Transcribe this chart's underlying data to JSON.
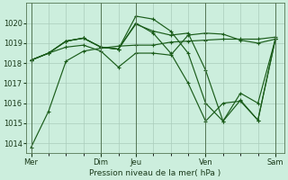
{
  "bg_color": "#cceedd",
  "grid_color": "#aaccbb",
  "line_color": "#1a5c1a",
  "ylabel": "Pression niveau de la mer( hPa )",
  "ylim": [
    1013.5,
    1021.0
  ],
  "yticks": [
    1014,
    1015,
    1016,
    1017,
    1018,
    1019,
    1020
  ],
  "xtick_labels": [
    "Mer",
    "Dim",
    "Jeu",
    "Ven",
    "Sam"
  ],
  "xtick_positions": [
    0,
    4,
    6,
    10,
    14
  ],
  "vlines": [
    0,
    4,
    6,
    10,
    14
  ],
  "x_vals": [
    0,
    1,
    2,
    3,
    4,
    5,
    6,
    7,
    8,
    9,
    10,
    11,
    12,
    13,
    14
  ],
  "series": [
    [
      1013.8,
      1015.6,
      1018.1,
      1018.6,
      1018.75,
      1018.85,
      1018.9,
      1018.9,
      1019.05,
      1019.1,
      1019.15,
      1019.2,
      1019.2,
      1019.2,
      1019.3
    ],
    [
      1018.15,
      1018.5,
      1019.1,
      1019.25,
      1018.8,
      1018.7,
      1020.35,
      1020.2,
      1019.6,
      1018.5,
      1016.0,
      1015.1,
      1016.5,
      1016.0,
      1019.2
    ],
    [
      1018.15,
      1018.5,
      1019.1,
      1019.25,
      1018.8,
      1018.7,
      1020.0,
      1019.5,
      1018.5,
      1017.0,
      1015.1,
      1016.0,
      1016.1,
      1015.15,
      1019.2
    ],
    [
      1018.15,
      1018.5,
      1019.1,
      1019.25,
      1018.8,
      1018.7,
      1019.95,
      1019.6,
      1019.4,
      1019.5,
      1017.65,
      1015.1,
      1016.15,
      1015.15,
      1019.2
    ],
    [
      1018.15,
      1018.5,
      1018.8,
      1018.9,
      1018.6,
      1017.8,
      1018.5,
      1018.5,
      1018.4,
      1019.4,
      1019.5,
      1019.45,
      1019.15,
      1019.0,
      1019.2
    ]
  ]
}
